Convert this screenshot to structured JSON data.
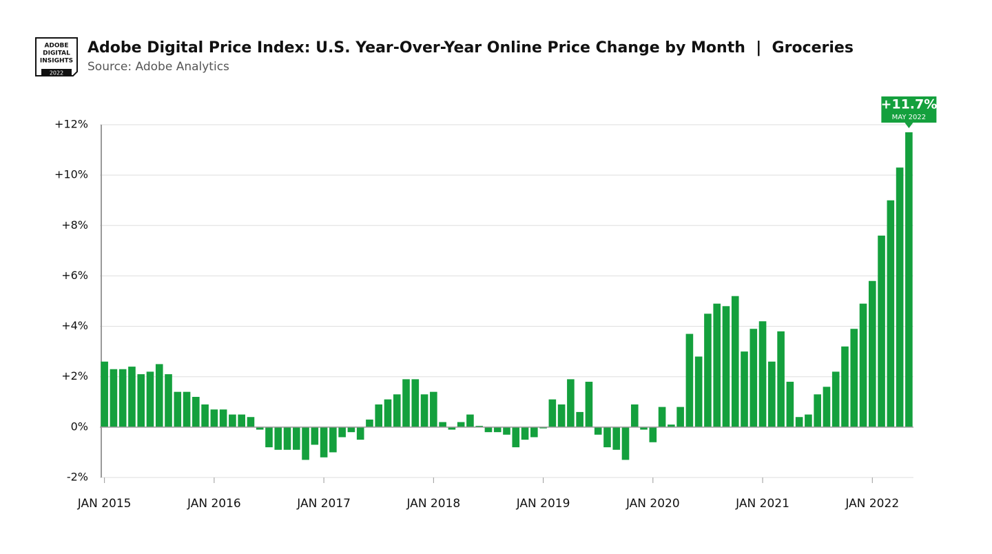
{
  "logo": [
    "ADOBE",
    "DIGITAL",
    "INSIGHTS",
    "2022"
  ],
  "chart_data": {
    "type": "bar",
    "title": "Adobe Digital Price Index: U.S. Year-Over-Year Online Price Change by Month  |  Groceries",
    "subtitle": "Source: Adobe Analytics",
    "color": "#14a03d",
    "grid": true,
    "categories": [
      "JAN 2015",
      null,
      null,
      null,
      null,
      null,
      null,
      null,
      null,
      null,
      null,
      null,
      "JAN 2016",
      null,
      null,
      null,
      null,
      null,
      null,
      null,
      null,
      null,
      null,
      null,
      "JAN 2017",
      null,
      null,
      null,
      null,
      null,
      null,
      null,
      null,
      null,
      null,
      null,
      "JAN 2018",
      null,
      null,
      null,
      null,
      null,
      null,
      null,
      null,
      null,
      null,
      null,
      "JAN 2019",
      null,
      null,
      null,
      null,
      null,
      null,
      null,
      null,
      null,
      null,
      null,
      "JAN 2020",
      null,
      null,
      null,
      null,
      null,
      null,
      null,
      null,
      null,
      null,
      null,
      "JAN 2021",
      null,
      null,
      null,
      null,
      null,
      null,
      null,
      null,
      null,
      null,
      null,
      "JAN 2022",
      null,
      null,
      null,
      null
    ],
    "values": [
      2.6,
      2.3,
      2.3,
      2.4,
      2.1,
      2.2,
      2.5,
      2.1,
      1.4,
      1.4,
      1.2,
      0.9,
      0.7,
      0.7,
      0.5,
      0.5,
      0.4,
      -0.1,
      -0.8,
      -0.9,
      -0.9,
      -0.9,
      -1.3,
      -0.7,
      -1.2,
      -1.0,
      -0.4,
      -0.2,
      -0.5,
      0.3,
      0.9,
      1.1,
      1.3,
      1.9,
      1.9,
      1.3,
      1.4,
      0.2,
      -0.1,
      0.2,
      0.5,
      0.05,
      -0.2,
      -0.2,
      -0.3,
      -0.8,
      -0.5,
      -0.4,
      -0.05,
      1.1,
      0.9,
      1.9,
      0.6,
      1.8,
      -0.3,
      -0.8,
      -0.9,
      -1.3,
      0.9,
      -0.1,
      -0.6,
      0.8,
      0.1,
      0.8,
      3.7,
      2.8,
      4.5,
      4.9,
      4.8,
      5.2,
      3.0,
      3.9,
      4.2,
      2.6,
      3.8,
      1.8,
      0.4,
      0.5,
      1.3,
      1.6,
      2.2,
      3.2,
      3.9,
      4.9,
      5.8,
      7.6,
      9.0,
      10.3,
      11.7
    ],
    "ylim": [
      -2,
      12
    ],
    "yticks": [
      {
        "value": -2,
        "label": "-2%"
      },
      {
        "value": 0,
        "label": "0%"
      },
      {
        "value": 2,
        "label": "+2%"
      },
      {
        "value": 4,
        "label": "+4%"
      },
      {
        "value": 6,
        "label": "+6%"
      },
      {
        "value": 8,
        "label": "+8%"
      },
      {
        "value": 10,
        "label": "+10%"
      },
      {
        "value": 12,
        "label": "+12%"
      }
    ],
    "annotation": {
      "text": "+11.7%",
      "subtext": "MAY 2022"
    }
  }
}
